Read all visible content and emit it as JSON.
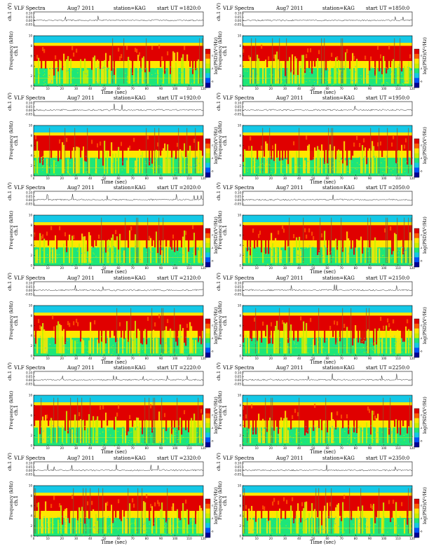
{
  "common": {
    "title_left": "VLF Spectra",
    "date": "Aug7 2011",
    "station": "station=KAG",
    "start_prefix": "start  UT =",
    "ch_axis_label": "ch.1 (V)",
    "freq_axis_label": "Frequency (kHz)",
    "channel_label": "ch.1",
    "colorbar_label": "log(PSD)(V²/Hz)",
    "time_axis_label": "Time (sec)"
  },
  "panel_start_times": [
    "1820:0",
    "1850:0",
    "1920:0",
    "1950:0",
    "2020:0",
    "2050:0",
    "2120:0",
    "2150:0",
    "2220:0",
    "2250:0",
    "2320:0",
    "2350:0"
  ],
  "chart_data": {
    "type": "heatmap",
    "time_ticks": [
      0,
      10,
      20,
      30,
      40,
      50,
      60,
      70,
      80,
      90,
      100,
      110,
      120
    ],
    "freq_ticks": [
      0,
      2,
      4,
      6,
      8,
      10
    ],
    "ch_ticks": [
      "0.10",
      "0.05",
      "0.00",
      "-0.05"
    ],
    "colorbar_ticks": [
      "-2",
      "-4",
      "-6"
    ],
    "colorbar_colors": [
      "#e00000",
      "#ff5a00",
      "#ffe600",
      "#c8f000",
      "#1ee678",
      "#14c8e6",
      "#0050ff",
      "#000096"
    ],
    "xlim": [
      0,
      120
    ],
    "ylim_freq": [
      0,
      10
    ]
  }
}
